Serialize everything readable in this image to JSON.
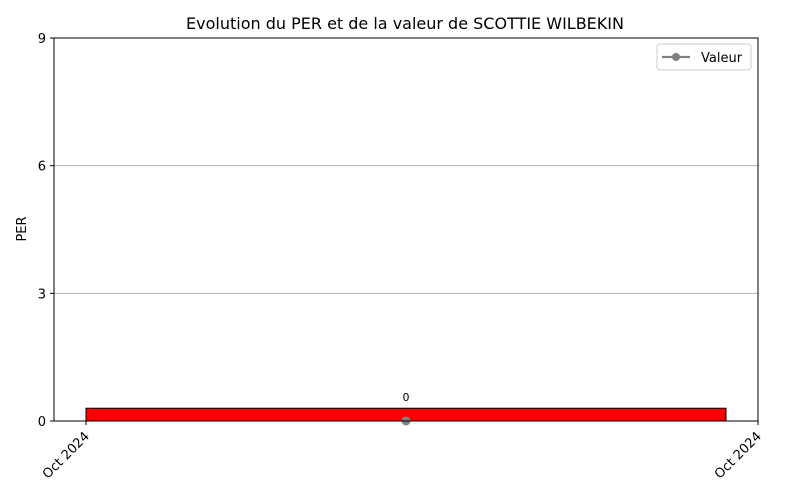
{
  "chart_data": {
    "type": "bar",
    "title": "Evolution du PER et de la valeur de SCOTTIE WILBEKIN",
    "xlabel": "",
    "ylabel": "PER",
    "x_tick_labels": [
      "Oct 2024",
      "Oct 2024"
    ],
    "y_ticks": [
      0,
      3,
      6,
      9
    ],
    "ylim": [
      0,
      9
    ],
    "grid": "horizontal",
    "legend_position": "top-right",
    "bars": [
      {
        "value": 0.3,
        "color": "#ff0000",
        "label": "0"
      }
    ],
    "series": [
      {
        "name": "Valeur",
        "type": "line",
        "color": "#808080",
        "values": [
          0
        ]
      }
    ]
  }
}
